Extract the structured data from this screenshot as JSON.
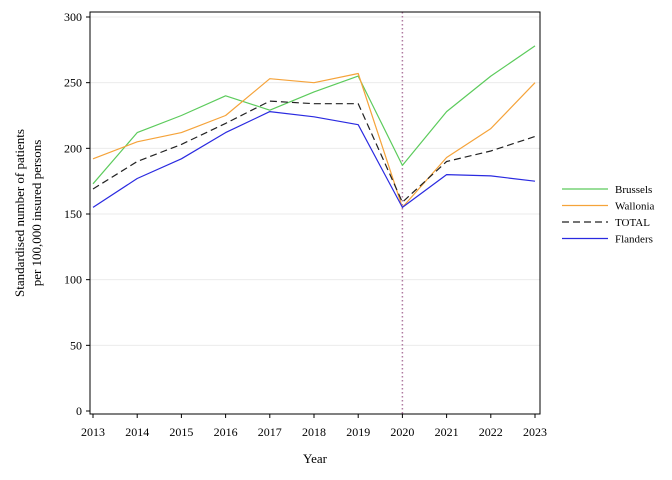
{
  "chart_data": {
    "type": "line",
    "title": "",
    "xlabel": "Year",
    "ylabel_lines": [
      "Standardised number of patients",
      "per 100,000 insured persons"
    ],
    "x": [
      2013,
      2014,
      2015,
      2016,
      2017,
      2018,
      2019,
      2020,
      2021,
      2022,
      2023
    ],
    "xlim": [
      2013,
      2023
    ],
    "ylim": [
      0,
      300
    ],
    "yticks": [
      0,
      50,
      100,
      150,
      200,
      250,
      300
    ],
    "grid": "horizontal",
    "reference_line": {
      "x": 2020,
      "style": "dotted",
      "color": "#b07aa1"
    },
    "legend_position": "right",
    "series": [
      {
        "name": "Brussels",
        "color": "#5ccb5c",
        "dash": "solid",
        "values": [
          173,
          212,
          225,
          240,
          229,
          243,
          255,
          187,
          228,
          255,
          278
        ]
      },
      {
        "name": "Wallonia",
        "color": "#f5a33a",
        "dash": "solid",
        "values": [
          192,
          205,
          212,
          225,
          253,
          250,
          257,
          155,
          193,
          215,
          250
        ]
      },
      {
        "name": "TOTAL",
        "color": "#222222",
        "dash": "dashed",
        "values": [
          169,
          190,
          203,
          219,
          236,
          234,
          234,
          159,
          190,
          198,
          209
        ]
      },
      {
        "name": "Flanders",
        "color": "#2a2ae0",
        "dash": "solid",
        "values": [
          155,
          177,
          192,
          212,
          228,
          224,
          218,
          155,
          180,
          179,
          175
        ]
      }
    ]
  }
}
